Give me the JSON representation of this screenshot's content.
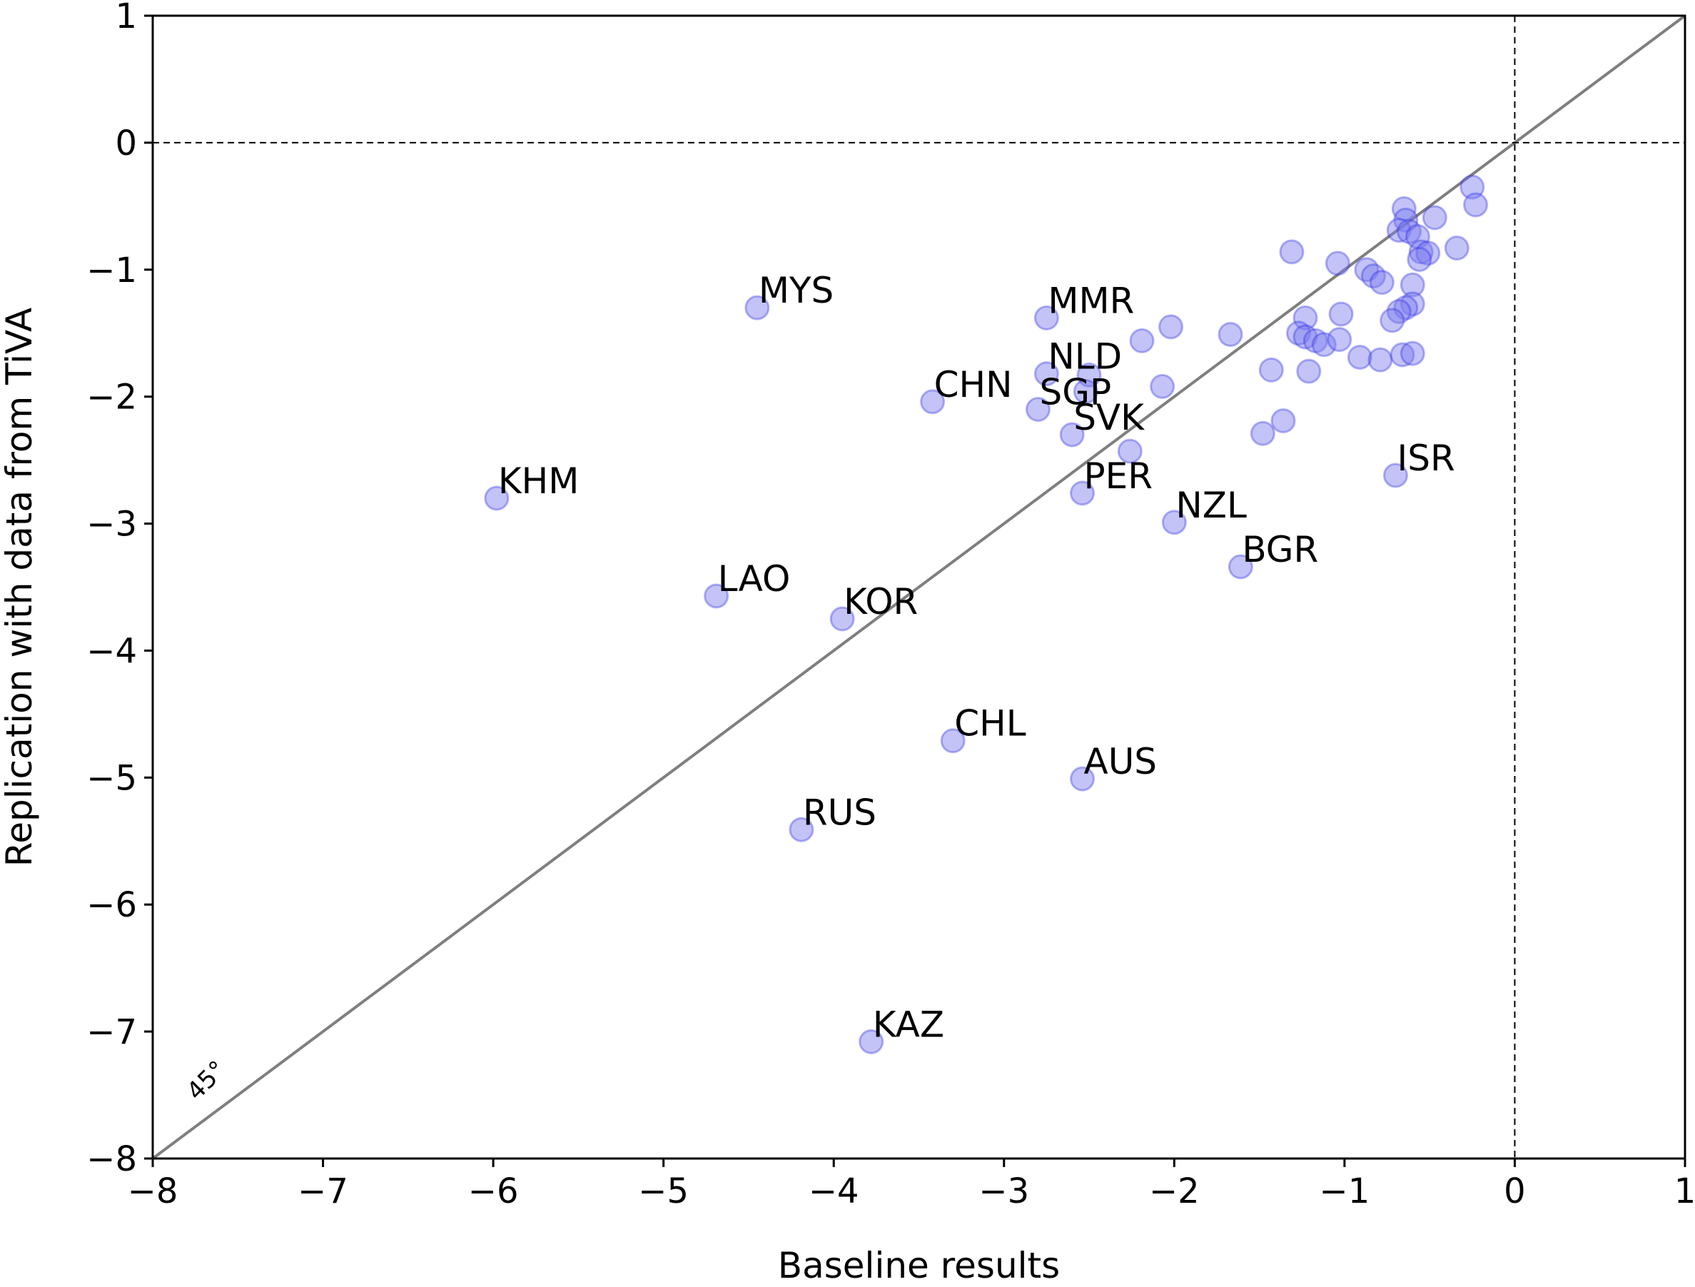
{
  "chart_data": {
    "type": "scatter",
    "xlabel": "Baseline results",
    "ylabel": "Replication with data from TiVA",
    "xlim": [
      -8,
      1
    ],
    "ylim": [
      -8,
      1
    ],
    "xticks": [
      -8,
      -7,
      -6,
      -5,
      -4,
      -3,
      -2,
      -1,
      0,
      1
    ],
    "yticks": [
      -8,
      -7,
      -6,
      -5,
      -4,
      -3,
      -2,
      -1,
      0,
      1
    ],
    "xtick_labels": [
      "−8",
      "−7",
      "−6",
      "−5",
      "−4",
      "−3",
      "−2",
      "−1",
      "0",
      "1"
    ],
    "ytick_labels": [
      "−8",
      "−7",
      "−6",
      "−5",
      "−4",
      "−3",
      "−2",
      "−1",
      "0",
      "1"
    ],
    "grid": false,
    "reference_lines": {
      "diagonal_label": "45°",
      "vertical_dashed_at_x": 0,
      "horizontal_dashed_at_y": 0
    },
    "colors": {
      "point_fill": "#7b7bef",
      "point_stroke": "#2a2ae6",
      "diagonal": "#7f7f7f"
    },
    "labeled_points": [
      {
        "label": "MYS",
        "x": -4.45,
        "y": -1.3
      },
      {
        "label": "MMR",
        "x": -2.75,
        "y": -1.38
      },
      {
        "label": "NLD",
        "x": -2.75,
        "y": -1.82
      },
      {
        "label": "CHN",
        "x": -3.42,
        "y": -2.04
      },
      {
        "label": "SGP",
        "x": -2.8,
        "y": -2.1
      },
      {
        "label": "SVK",
        "x": -2.6,
        "y": -2.3
      },
      {
        "label": "KHM",
        "x": -5.98,
        "y": -2.8
      },
      {
        "label": "PER",
        "x": -2.54,
        "y": -2.76
      },
      {
        "label": "ISR",
        "x": -0.7,
        "y": -2.62
      },
      {
        "label": "NZL",
        "x": -2.0,
        "y": -2.99
      },
      {
        "label": "BGR",
        "x": -1.61,
        "y": -3.34
      },
      {
        "label": "LAO",
        "x": -4.69,
        "y": -3.57
      },
      {
        "label": "KOR",
        "x": -3.95,
        "y": -3.75
      },
      {
        "label": "CHL",
        "x": -3.3,
        "y": -4.71
      },
      {
        "label": "AUS",
        "x": -2.54,
        "y": -5.01
      },
      {
        "label": "RUS",
        "x": -4.19,
        "y": -5.41
      },
      {
        "label": "KAZ",
        "x": -3.78,
        "y": -7.08
      }
    ],
    "unlabeled_points": [
      {
        "x": -0.25,
        "y": -0.35
      },
      {
        "x": -0.23,
        "y": -0.49
      },
      {
        "x": -0.47,
        "y": -0.59
      },
      {
        "x": -0.34,
        "y": -0.83
      },
      {
        "x": -0.65,
        "y": -0.52
      },
      {
        "x": -0.64,
        "y": -0.61
      },
      {
        "x": -0.68,
        "y": -0.69
      },
      {
        "x": -0.62,
        "y": -0.7
      },
      {
        "x": -0.57,
        "y": -0.74
      },
      {
        "x": -0.55,
        "y": -0.86
      },
      {
        "x": -0.51,
        "y": -0.87
      },
      {
        "x": -0.56,
        "y": -0.92
      },
      {
        "x": -1.31,
        "y": -0.86
      },
      {
        "x": -1.04,
        "y": -0.95
      },
      {
        "x": -0.87,
        "y": -1.0
      },
      {
        "x": -0.83,
        "y": -1.05
      },
      {
        "x": -0.78,
        "y": -1.1
      },
      {
        "x": -0.6,
        "y": -1.12
      },
      {
        "x": -0.6,
        "y": -1.27
      },
      {
        "x": -0.64,
        "y": -1.3
      },
      {
        "x": -0.68,
        "y": -1.33
      },
      {
        "x": -0.72,
        "y": -1.4
      },
      {
        "x": -1.02,
        "y": -1.35
      },
      {
        "x": -1.23,
        "y": -1.38
      },
      {
        "x": -1.27,
        "y": -1.5
      },
      {
        "x": -1.23,
        "y": -1.53
      },
      {
        "x": -1.17,
        "y": -1.56
      },
      {
        "x": -1.12,
        "y": -1.59
      },
      {
        "x": -1.03,
        "y": -1.55
      },
      {
        "x": -0.91,
        "y": -1.69
      },
      {
        "x": -0.79,
        "y": -1.71
      },
      {
        "x": -0.66,
        "y": -1.67
      },
      {
        "x": -0.6,
        "y": -1.66
      },
      {
        "x": -1.43,
        "y": -1.79
      },
      {
        "x": -1.21,
        "y": -1.8
      },
      {
        "x": -1.67,
        "y": -1.51
      },
      {
        "x": -2.02,
        "y": -1.45
      },
      {
        "x": -2.19,
        "y": -1.56
      },
      {
        "x": -2.07,
        "y": -1.92
      },
      {
        "x": -2.5,
        "y": -1.83
      },
      {
        "x": -1.36,
        "y": -2.19
      },
      {
        "x": -1.48,
        "y": -2.29
      },
      {
        "x": -2.26,
        "y": -2.43
      },
      {
        "x": -2.52,
        "y": -1.96
      }
    ]
  }
}
